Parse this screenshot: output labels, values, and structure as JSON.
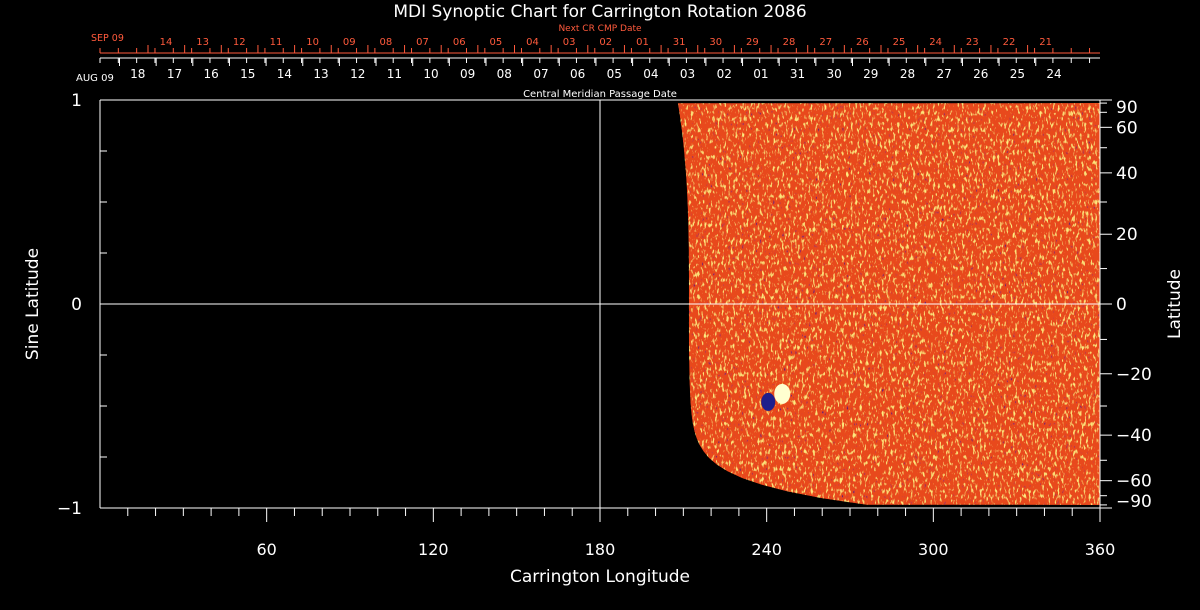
{
  "chart_data": {
    "type": "heatmap",
    "title": "MDI Synoptic Chart for Carrington Rotation 2086",
    "xlabel": "Carrington Longitude",
    "ylabel": "Sine Latitude",
    "y2label": "Latitude",
    "xlim": [
      0,
      360
    ],
    "ylim": [
      -1,
      1
    ],
    "x_ticks": [
      60,
      120,
      180,
      240,
      300,
      360
    ],
    "x_minor_step": 10,
    "y_ticks": [
      -1,
      0,
      1
    ],
    "y_tick_labels": [
      "−1",
      "0",
      "1"
    ],
    "y_minor_step": 0.25,
    "y2_ticks": [
      90,
      60,
      40,
      20,
      0,
      -20,
      -40,
      -60,
      -90
    ],
    "y2_tick_labels": [
      "90",
      "60",
      "40",
      "20",
      "0",
      "−20",
      "−40",
      "−60",
      "−90"
    ],
    "y2_minor_step": 10,
    "grid_lines": {
      "x": [
        180
      ],
      "y": [
        0
      ]
    },
    "top_axis": {
      "label": "Central Meridian Passage Date",
      "start_label": "AUG 09",
      "dates": [
        "18",
        "17",
        "16",
        "15",
        "14",
        "13",
        "12",
        "11",
        "10",
        "09",
        "08",
        "07",
        "06",
        "05",
        "04",
        "03",
        "02",
        "01",
        "31",
        "30",
        "29",
        "28",
        "27",
        "26",
        "25",
        "24"
      ]
    },
    "next_axis": {
      "label": "Next CR CMP Date",
      "start_label": "SEP 09",
      "dates": [
        "14",
        "13",
        "12",
        "11",
        "10",
        "09",
        "08",
        "07",
        "06",
        "05",
        "04",
        "03",
        "02",
        "01",
        "31",
        "30",
        "29",
        "28",
        "27",
        "26",
        "25",
        "24",
        "23",
        "22",
        "21"
      ]
    },
    "data_coverage": {
      "lon_start": 216,
      "lon_end": 360
    },
    "features": [
      {
        "type": "active_region",
        "lon": 242,
        "sin_lat": -0.47
      }
    ],
    "colors": {
      "background": "#000000",
      "axes": "#ffffff",
      "next_axis": "#ff5a3c",
      "field": "#e8481a",
      "negative": "#1f1f8c",
      "positive": "#ffffd0"
    }
  }
}
